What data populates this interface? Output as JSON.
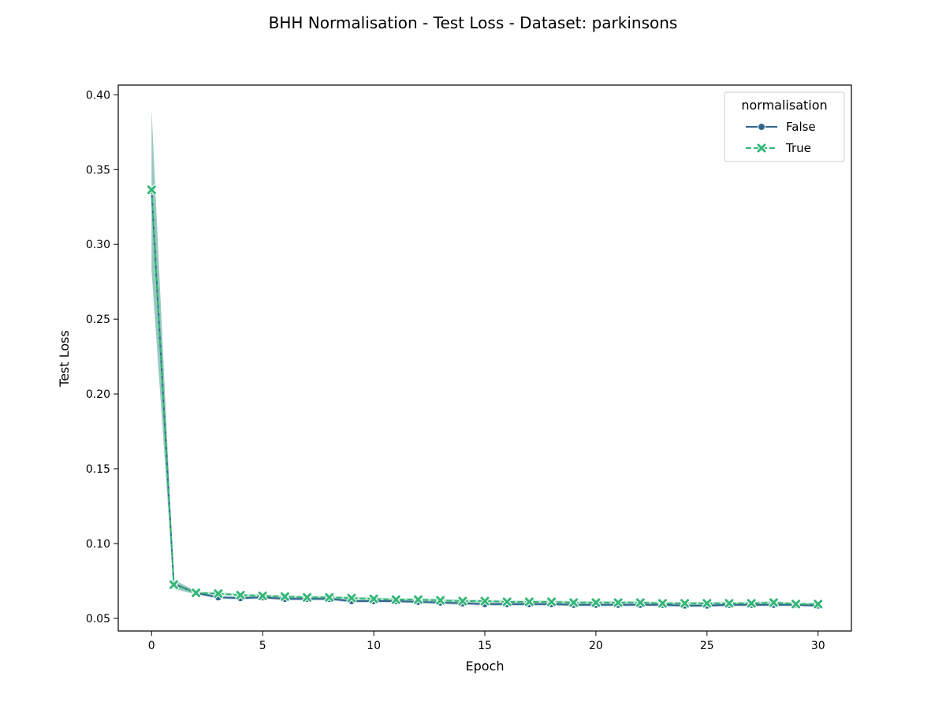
{
  "chart_data": {
    "type": "line",
    "title": "BHH Normalisation - Test Loss - Dataset: parkinsons",
    "xlabel": "Epoch",
    "ylabel": "Test Loss",
    "xlim": [
      -1.5,
      31.5
    ],
    "ylim": [
      0.0415,
      0.4065
    ],
    "xticks": [
      0,
      5,
      10,
      15,
      20,
      25,
      30
    ],
    "xtick_labels": [
      "0",
      "5",
      "10",
      "15",
      "20",
      "25",
      "30"
    ],
    "yticks": [
      0.05,
      0.1,
      0.15,
      0.2,
      0.25,
      0.3,
      0.35,
      0.4
    ],
    "ytick_labels": [
      "0.05",
      "0.10",
      "0.15",
      "0.20",
      "0.25",
      "0.30",
      "0.35",
      "0.40"
    ],
    "grid": false,
    "legend": {
      "title": "normalisation",
      "placement": "top-right"
    },
    "x": [
      0,
      1,
      2,
      3,
      4,
      5,
      6,
      7,
      8,
      9,
      10,
      11,
      12,
      13,
      14,
      15,
      16,
      17,
      18,
      19,
      20,
      21,
      22,
      23,
      24,
      25,
      26,
      27,
      28,
      29,
      30
    ],
    "series": [
      {
        "name": "False",
        "color": "#30678d",
        "dash": "solid",
        "marker": "circle",
        "values": [
          0.336,
          0.073,
          0.067,
          0.064,
          0.0635,
          0.064,
          0.063,
          0.063,
          0.063,
          0.0615,
          0.0615,
          0.0615,
          0.061,
          0.0605,
          0.06,
          0.0595,
          0.0595,
          0.0595,
          0.0595,
          0.059,
          0.059,
          0.059,
          0.059,
          0.059,
          0.0585,
          0.0585,
          0.059,
          0.059,
          0.059,
          0.059,
          0.0585
        ],
        "ci_low": [
          0.282,
          0.07,
          0.066,
          0.063,
          0.0625,
          0.063,
          0.062,
          0.062,
          0.062,
          0.0605,
          0.0605,
          0.0605,
          0.06,
          0.0595,
          0.059,
          0.0585,
          0.0585,
          0.0585,
          0.0585,
          0.058,
          0.058,
          0.058,
          0.058,
          0.058,
          0.0575,
          0.0575,
          0.058,
          0.058,
          0.058,
          0.058,
          0.0575
        ],
        "ci_high": [
          0.39,
          0.076,
          0.068,
          0.065,
          0.0645,
          0.065,
          0.064,
          0.064,
          0.064,
          0.0625,
          0.0625,
          0.0625,
          0.062,
          0.0615,
          0.061,
          0.0605,
          0.0605,
          0.0605,
          0.0605,
          0.06,
          0.06,
          0.06,
          0.06,
          0.06,
          0.0595,
          0.0595,
          0.06,
          0.06,
          0.06,
          0.06,
          0.0595
        ]
      },
      {
        "name": "True",
        "color": "#35b779",
        "dash": "dashed",
        "marker": "x",
        "values": [
          0.3365,
          0.0725,
          0.067,
          0.0665,
          0.0655,
          0.065,
          0.0645,
          0.064,
          0.064,
          0.0635,
          0.063,
          0.0625,
          0.0625,
          0.062,
          0.0615,
          0.0615,
          0.061,
          0.061,
          0.061,
          0.0605,
          0.0605,
          0.0605,
          0.0605,
          0.06,
          0.06,
          0.06,
          0.06,
          0.06,
          0.0605,
          0.0595,
          0.0595
        ],
        "ci_low": [
          0.284,
          0.0695,
          0.066,
          0.0655,
          0.0645,
          0.064,
          0.0635,
          0.063,
          0.063,
          0.0625,
          0.062,
          0.0615,
          0.0615,
          0.061,
          0.0605,
          0.0605,
          0.06,
          0.06,
          0.06,
          0.0595,
          0.0595,
          0.0595,
          0.0595,
          0.059,
          0.059,
          0.059,
          0.059,
          0.059,
          0.0595,
          0.0585,
          0.0585
        ],
        "ci_high": [
          0.389,
          0.0755,
          0.068,
          0.0675,
          0.0665,
          0.066,
          0.0655,
          0.065,
          0.065,
          0.0645,
          0.064,
          0.0635,
          0.0635,
          0.063,
          0.0625,
          0.0625,
          0.062,
          0.062,
          0.062,
          0.0615,
          0.0615,
          0.0615,
          0.0615,
          0.061,
          0.061,
          0.061,
          0.061,
          0.061,
          0.0615,
          0.0605,
          0.0605
        ]
      }
    ]
  }
}
